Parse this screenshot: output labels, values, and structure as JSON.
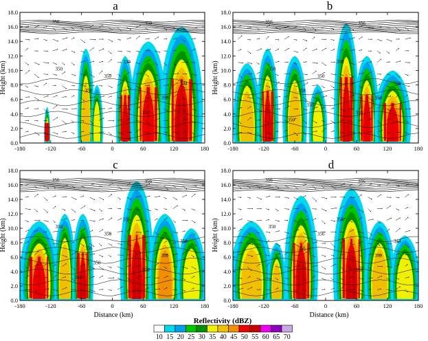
{
  "panels": [
    {
      "label": "a"
    },
    {
      "label": "b"
    },
    {
      "label": "c"
    },
    {
      "label": "d"
    }
  ],
  "axes": {
    "ylabel": "Height (km)",
    "xlabel": "Distance (km)",
    "xticks": [
      "-180",
      "-120",
      "-60",
      "0",
      "60",
      "120",
      "180"
    ],
    "yticks": [
      "0.0",
      "2.0",
      "4.0",
      "6.0",
      "8.0",
      "10.0",
      "12.0",
      "14.0",
      "16.0",
      "18.0"
    ]
  },
  "colorbar": {
    "title": "Reflectivity (dBZ)",
    "levels": [
      "10",
      "15",
      "20",
      "25",
      "30",
      "35",
      "40",
      "45",
      "50",
      "55",
      "60",
      "65",
      "70"
    ],
    "colors": [
      "#ffffff",
      "#00d8f0",
      "#00a0f0",
      "#00c800",
      "#009000",
      "#f0f000",
      "#f0c000",
      "#f09000",
      "#f00000",
      "#c80000",
      "#f000f0",
      "#9000c0",
      "#c8a8e0"
    ]
  },
  "chart_data": [
    {
      "type": "heatmap",
      "panel": "a",
      "xlabel": "",
      "ylabel": "Height (km)",
      "xlim": [
        -180,
        180
      ],
      "ylim": [
        0,
        18
      ],
      "contour_labels": [
        "356",
        "350",
        "350",
        "350",
        "350",
        "350",
        "350",
        "344",
        "350"
      ],
      "cells": [
        {
          "x": [
            -132,
            -122
          ],
          "top": 5,
          "max_dbz": 50
        },
        {
          "x": [
            -65,
            -38
          ],
          "top": 13,
          "max_dbz": 40
        },
        {
          "x": [
            -40,
            -20
          ],
          "top": 8,
          "max_dbz": 35
        },
        {
          "x": [
            10,
            40
          ],
          "top": 12,
          "max_dbz": 55
        },
        {
          "x": [
            40,
            100
          ],
          "top": 14,
          "max_dbz": 50
        },
        {
          "x": [
            100,
            170
          ],
          "top": 16,
          "max_dbz": 55
        }
      ]
    },
    {
      "type": "heatmap",
      "panel": "b",
      "xlabel": "",
      "ylabel": "",
      "xlim": [
        -180,
        180
      ],
      "ylim": [
        0,
        18
      ],
      "contour_labels": [
        "356",
        "356",
        "358",
        "350",
        "350",
        "350",
        "350",
        "350",
        "350",
        "350",
        "350"
      ],
      "cells": [
        {
          "x": [
            -175,
            -130
          ],
          "top": 11,
          "max_dbz": 40
        },
        {
          "x": [
            -130,
            -95
          ],
          "top": 13,
          "max_dbz": 55
        },
        {
          "x": [
            -80,
            -40
          ],
          "top": 12,
          "max_dbz": 40
        },
        {
          "x": [
            -30,
            0
          ],
          "top": 8,
          "max_dbz": 35
        },
        {
          "x": [
            20,
            60
          ],
          "top": 16.5,
          "max_dbz": 55
        },
        {
          "x": [
            60,
            100
          ],
          "top": 12,
          "max_dbz": 50
        },
        {
          "x": [
            100,
            160
          ],
          "top": 10,
          "max_dbz": 50
        }
      ]
    },
    {
      "type": "heatmap",
      "panel": "c",
      "xlabel": "Distance (km)",
      "ylabel": "Height (km)",
      "xlim": [
        -180,
        180
      ],
      "ylim": [
        0,
        18
      ],
      "contour_labels": [
        "356",
        "356",
        "356",
        "350",
        "356",
        "350",
        "350",
        "350",
        "350",
        "344",
        "350"
      ],
      "cells": [
        {
          "x": [
            -175,
            -110
          ],
          "top": 11,
          "max_dbz": 50
        },
        {
          "x": [
            -110,
            -75
          ],
          "top": 12,
          "max_dbz": 40
        },
        {
          "x": [
            -75,
            -40
          ],
          "top": 12,
          "max_dbz": 55
        },
        {
          "x": [
            20,
            75
          ],
          "top": 16.5,
          "max_dbz": 55
        },
        {
          "x": [
            75,
            130
          ],
          "top": 12,
          "max_dbz": 45
        },
        {
          "x": [
            130,
            178
          ],
          "top": 10,
          "max_dbz": 35
        }
      ]
    },
    {
      "type": "heatmap",
      "panel": "d",
      "xlabel": "Distance (km)",
      "ylabel": "",
      "xlim": [
        -180,
        180
      ],
      "ylim": [
        0,
        18
      ],
      "contour_labels": [
        "356",
        "356",
        "356",
        "356",
        "356",
        "358",
        "350",
        "344",
        "350"
      ],
      "cells": [
        {
          "x": [
            -178,
            -110
          ],
          "top": 11,
          "max_dbz": 40
        },
        {
          "x": [
            -110,
            -80
          ],
          "top": 8,
          "max_dbz": 40
        },
        {
          "x": [
            -75,
            -20
          ],
          "top": 14.5,
          "max_dbz": 55
        },
        {
          "x": [
            20,
            80
          ],
          "top": 15.5,
          "max_dbz": 55
        },
        {
          "x": [
            80,
            130
          ],
          "top": 11,
          "max_dbz": 40
        },
        {
          "x": [
            130,
            178
          ],
          "top": 9,
          "max_dbz": 35
        }
      ]
    }
  ]
}
